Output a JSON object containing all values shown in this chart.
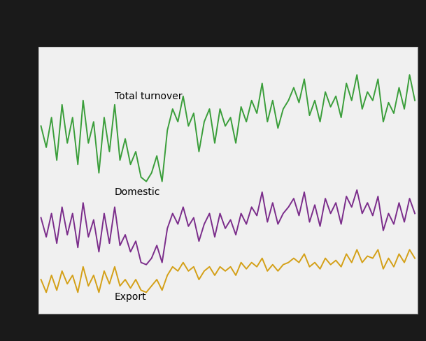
{
  "background_color": "#1a1a1a",
  "plot_bg_color": "#f0f0f0",
  "grid_color": "#ffffff",
  "line_total_color": "#3a9e3a",
  "line_domestic_color": "#7b2d8b",
  "line_export_color": "#d4a017",
  "line_width": 1.4,
  "label_total": "Total turnover",
  "label_domestic": "Domestic",
  "label_export": "Export",
  "label_fontsize": 10,
  "total_turnover": [
    108,
    98,
    112,
    92,
    118,
    100,
    112,
    90,
    120,
    100,
    110,
    86,
    112,
    96,
    118,
    92,
    102,
    90,
    96,
    84,
    82,
    86,
    94,
    82,
    106,
    116,
    110,
    122,
    108,
    114,
    96,
    110,
    116,
    100,
    116,
    108,
    112,
    100,
    117,
    110,
    120,
    114,
    128,
    110,
    120,
    107,
    116,
    120,
    126,
    119,
    130,
    113,
    120,
    110,
    124,
    117,
    122,
    112,
    128,
    120,
    132,
    116,
    124,
    120,
    130,
    110,
    119,
    114,
    126,
    116,
    132,
    120
  ],
  "domestic": [
    65,
    56,
    67,
    53,
    70,
    57,
    67,
    51,
    72,
    56,
    64,
    49,
    67,
    53,
    70,
    52,
    57,
    49,
    54,
    44,
    43,
    46,
    52,
    44,
    60,
    67,
    62,
    70,
    61,
    65,
    54,
    62,
    67,
    56,
    67,
    60,
    64,
    57,
    67,
    62,
    70,
    66,
    77,
    63,
    72,
    62,
    67,
    70,
    74,
    66,
    77,
    63,
    71,
    61,
    74,
    67,
    72,
    62,
    75,
    70,
    78,
    67,
    72,
    66,
    75,
    59,
    67,
    62,
    72,
    63,
    74,
    67
  ],
  "export": [
    36,
    30,
    38,
    31,
    40,
    34,
    38,
    30,
    42,
    33,
    38,
    30,
    40,
    34,
    42,
    33,
    36,
    32,
    36,
    31,
    30,
    33,
    36,
    31,
    38,
    42,
    40,
    44,
    40,
    42,
    36,
    40,
    42,
    38,
    42,
    40,
    42,
    38,
    44,
    41,
    44,
    42,
    46,
    40,
    43,
    40,
    43,
    44,
    46,
    44,
    48,
    42,
    44,
    41,
    46,
    43,
    45,
    42,
    48,
    44,
    50,
    44,
    47,
    46,
    50,
    41,
    46,
    42,
    48,
    44,
    50,
    46
  ]
}
